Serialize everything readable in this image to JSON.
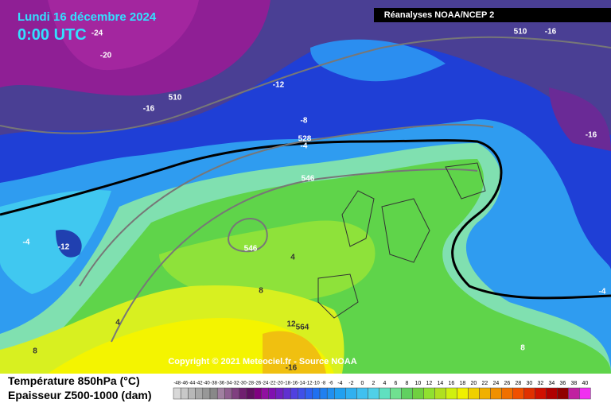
{
  "header": {
    "date": "Lundi 16 décembre 2024",
    "time": "0:00 UTC",
    "source": "Réanalyses NOAA/NCEP 2"
  },
  "map": {
    "labels": [
      "-24",
      "-20",
      "510",
      "-16",
      "-12",
      "-8",
      "528",
      "-4",
      "546",
      "-12",
      "-4",
      "546",
      "4",
      "8",
      "4",
      "8",
      "12",
      "564",
      "8",
      "-16",
      "510",
      "-16",
      "-16",
      "-4"
    ]
  },
  "footer": {
    "copyright": "Copyright © 2021 Meteociel.fr - Source NOAA",
    "legend_line1": "Température 850hPa (°C)",
    "legend_line2": "Epaisseur Z500-1000 (dam)",
    "scale": [
      -48,
      -46,
      -44,
      -42,
      -40,
      -38,
      -36,
      -34,
      -32,
      -30,
      -28,
      -26,
      -24,
      -22,
      -20,
      -18,
      -16,
      -14,
      -12,
      -10,
      -8,
      -6,
      -4,
      -2,
      0,
      2,
      4,
      6,
      8,
      10,
      12,
      14,
      16,
      18,
      20,
      22,
      24,
      26,
      28,
      30,
      32,
      34,
      36,
      38,
      40
    ]
  }
}
